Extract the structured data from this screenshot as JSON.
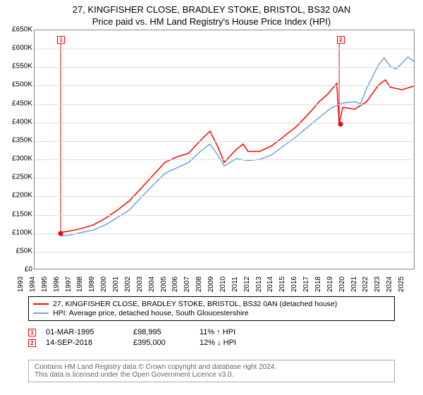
{
  "title": {
    "line1": "27, KINGFISHER CLOSE, BRADLEY STOKE, BRISTOL, BS32 0AN",
    "line2": "Price paid vs. HM Land Registry's House Price Index (HPI)"
  },
  "chart": {
    "type": "line",
    "plot_bg": "#ffffff",
    "grid_color": "#dddddd",
    "axis_color": "#888888",
    "ylim": [
      0,
      650000
    ],
    "ytick_step": 50000,
    "ytick_labels": [
      "£0",
      "£50K",
      "£100K",
      "£150K",
      "£200K",
      "£250K",
      "£300K",
      "£350K",
      "£400K",
      "£450K",
      "£500K",
      "£550K",
      "£600K",
      "£650K"
    ],
    "xlim": [
      1993,
      2025
    ],
    "xtick_step": 1,
    "xtick_labels": [
      "1993",
      "1994",
      "1995",
      "1996",
      "1997",
      "1998",
      "1999",
      "2000",
      "2001",
      "2002",
      "2003",
      "2004",
      "2005",
      "2006",
      "2007",
      "2008",
      "2009",
      "2010",
      "2011",
      "2012",
      "2013",
      "2014",
      "2015",
      "2016",
      "2017",
      "2018",
      "2019",
      "2020",
      "2021",
      "2022",
      "2023",
      "2024",
      "2025"
    ],
    "series": {
      "property": {
        "color": "#ff0000",
        "width": 1.5,
        "points": [
          [
            1995.2,
            99000
          ],
          [
            1996,
            103000
          ],
          [
            1997,
            110000
          ],
          [
            1998,
            120000
          ],
          [
            1999,
            138000
          ],
          [
            2000,
            160000
          ],
          [
            2001,
            185000
          ],
          [
            2002,
            220000
          ],
          [
            2003,
            255000
          ],
          [
            2004,
            290000
          ],
          [
            2005,
            305000
          ],
          [
            2006,
            315000
          ],
          [
            2007,
            350000
          ],
          [
            2007.8,
            375000
          ],
          [
            2008.5,
            330000
          ],
          [
            2009,
            290000
          ],
          [
            2010,
            325000
          ],
          [
            2010.6,
            340000
          ],
          [
            2011,
            320000
          ],
          [
            2012,
            320000
          ],
          [
            2013,
            335000
          ],
          [
            2014,
            360000
          ],
          [
            2015,
            385000
          ],
          [
            2016,
            418000
          ],
          [
            2017,
            455000
          ],
          [
            2017.7,
            475000
          ],
          [
            2018.5,
            505000
          ],
          [
            2018.7,
            395000
          ],
          [
            2019,
            440000
          ],
          [
            2020,
            435000
          ],
          [
            2021,
            455000
          ],
          [
            2022,
            500000
          ],
          [
            2022.6,
            515000
          ],
          [
            2023,
            495000
          ],
          [
            2024,
            488000
          ],
          [
            2025,
            498000
          ]
        ]
      },
      "hpi": {
        "color": "#6da3d9",
        "width": 1.5,
        "points": [
          [
            1995.2,
            89000
          ],
          [
            1996,
            92000
          ],
          [
            1997,
            99000
          ],
          [
            1998,
            106000
          ],
          [
            1999,
            120000
          ],
          [
            2000,
            140000
          ],
          [
            2001,
            160000
          ],
          [
            2002,
            195000
          ],
          [
            2003,
            228000
          ],
          [
            2004,
            260000
          ],
          [
            2005,
            275000
          ],
          [
            2006,
            290000
          ],
          [
            2007,
            320000
          ],
          [
            2007.8,
            340000
          ],
          [
            2008.5,
            308000
          ],
          [
            2009,
            280000
          ],
          [
            2010,
            300000
          ],
          [
            2011,
            295000
          ],
          [
            2012,
            298000
          ],
          [
            2013,
            310000
          ],
          [
            2014,
            335000
          ],
          [
            2015,
            358000
          ],
          [
            2016,
            385000
          ],
          [
            2017,
            412000
          ],
          [
            2018,
            438000
          ],
          [
            2019,
            452000
          ],
          [
            2020,
            455000
          ],
          [
            2020.5,
            450000
          ],
          [
            2021,
            490000
          ],
          [
            2022,
            555000
          ],
          [
            2022.5,
            575000
          ],
          [
            2023,
            552000
          ],
          [
            2023.5,
            545000
          ],
          [
            2024,
            560000
          ],
          [
            2024.5,
            578000
          ],
          [
            2025,
            565000
          ]
        ]
      }
    },
    "sale_markers": [
      {
        "n": "1",
        "year": 1995.2,
        "price": 98995,
        "box_y": 625000
      },
      {
        "n": "2",
        "year": 2018.7,
        "price": 395000,
        "box_y": 625000
      }
    ],
    "marker_color": "#ff0000"
  },
  "legend": {
    "items": [
      {
        "color": "#ff0000",
        "label": "27, KINGFISHER CLOSE, BRADLEY STOKE, BRISTOL, BS32 0AN (detached house)"
      },
      {
        "color": "#6da3d9",
        "label": "HPI: Average price, detached house, South Gloucestershire"
      }
    ]
  },
  "sales": [
    {
      "n": "1",
      "date": "01-MAR-1995",
      "price": "£98,995",
      "hpi": "11% ↑ HPI"
    },
    {
      "n": "2",
      "date": "14-SEP-2018",
      "price": "£395,000",
      "hpi": "12% ↓ HPI"
    }
  ],
  "footer": {
    "line1": "Contains HM Land Registry data © Crown copyright and database right 2024.",
    "line2": "This data is licensed under the Open Government Licence v3.0."
  }
}
